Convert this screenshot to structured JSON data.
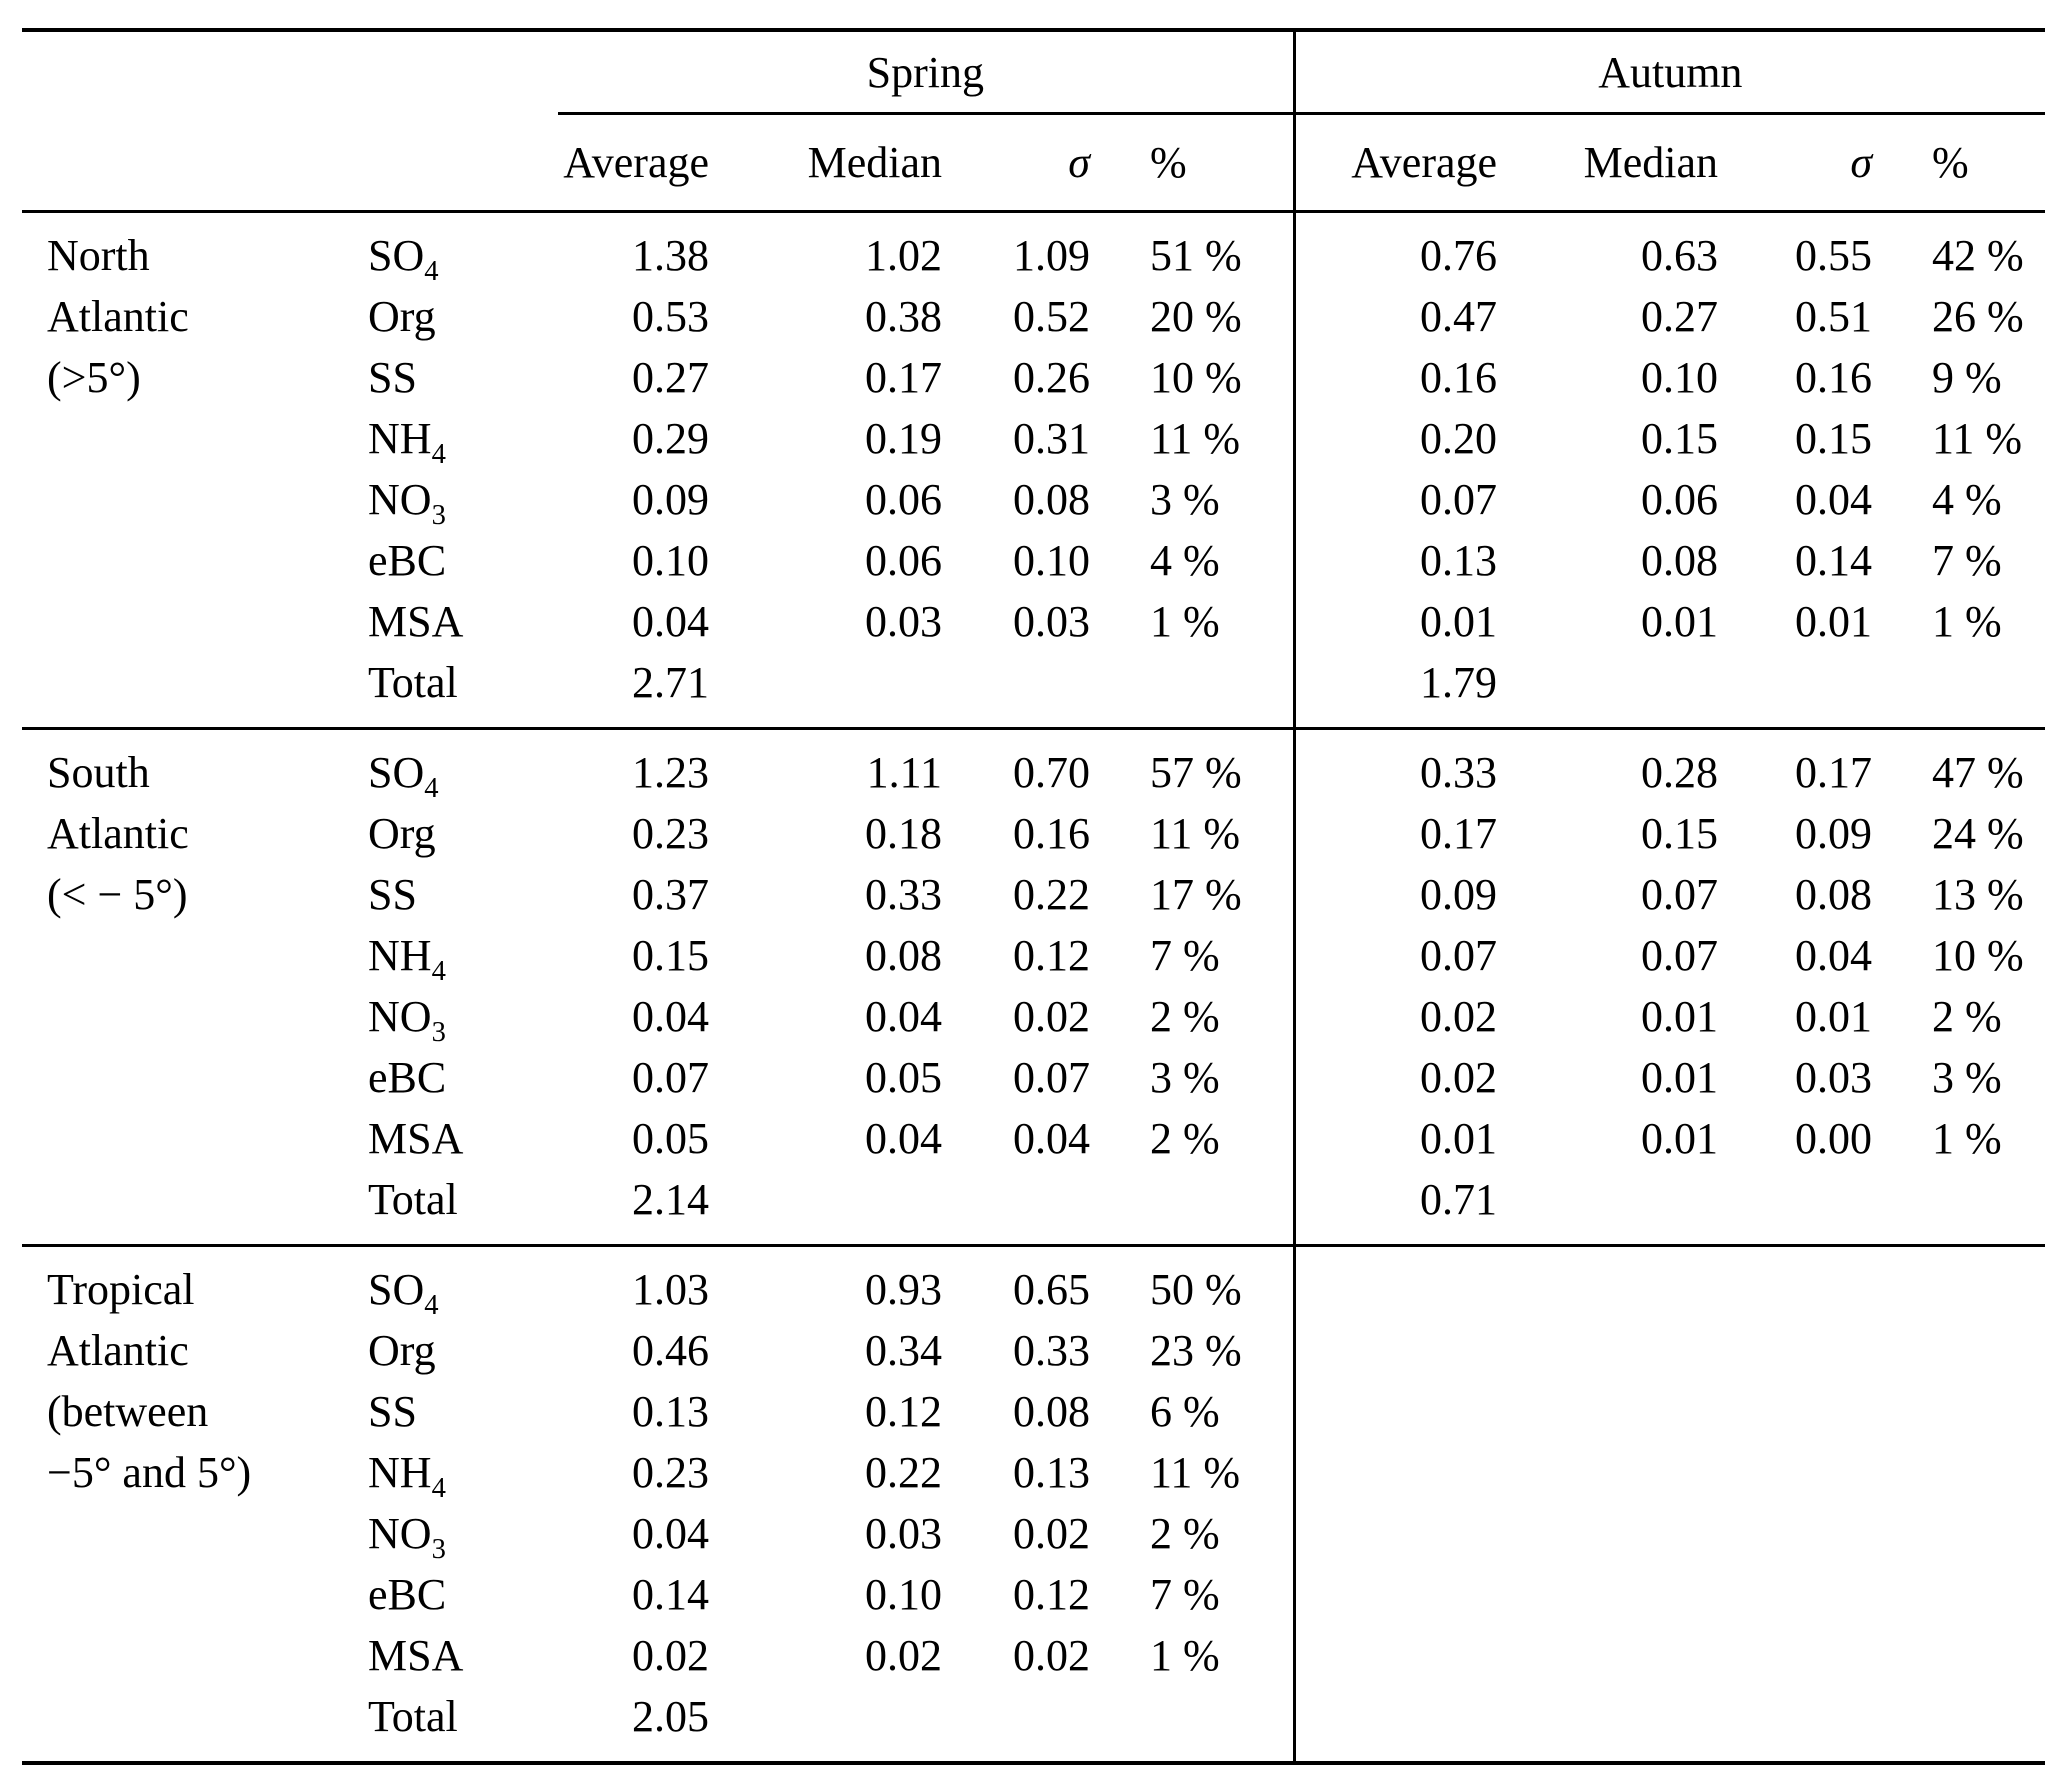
{
  "table": {
    "header": {
      "spring": "Spring",
      "autumn": "Autumn",
      "cols": [
        "Average",
        "Median",
        "σ",
        "%"
      ]
    },
    "sections": [
      {
        "region_lines": [
          "North",
          "Atlantic",
          "(>5°)"
        ],
        "rows": [
          {
            "species": "SO4",
            "spring": [
              "1.38",
              "1.02",
              "1.09",
              "51 %"
            ],
            "autumn": [
              "0.76",
              "0.63",
              "0.55",
              "42 %"
            ]
          },
          {
            "species": "Org",
            "spring": [
              "0.53",
              "0.38",
              "0.52",
              "20 %"
            ],
            "autumn": [
              "0.47",
              "0.27",
              "0.51",
              "26 %"
            ]
          },
          {
            "species": "SS",
            "spring": [
              "0.27",
              "0.17",
              "0.26",
              "10 %"
            ],
            "autumn": [
              "0.16",
              "0.10",
              "0.16",
              "9 %"
            ]
          },
          {
            "species": "NH4",
            "spring": [
              "0.29",
              "0.19",
              "0.31",
              "11 %"
            ],
            "autumn": [
              "0.20",
              "0.15",
              "0.15",
              "11 %"
            ]
          },
          {
            "species": "NO3",
            "spring": [
              "0.09",
              "0.06",
              "0.08",
              "3 %"
            ],
            "autumn": [
              "0.07",
              "0.06",
              "0.04",
              "4 %"
            ]
          },
          {
            "species": "eBC",
            "spring": [
              "0.10",
              "0.06",
              "0.10",
              "4 %"
            ],
            "autumn": [
              "0.13",
              "0.08",
              "0.14",
              "7 %"
            ]
          },
          {
            "species": "MSA",
            "spring": [
              "0.04",
              "0.03",
              "0.03",
              "1 %"
            ],
            "autumn": [
              "0.01",
              "0.01",
              "0.01",
              "1 %"
            ]
          },
          {
            "species": "Total",
            "spring": [
              "2.71",
              "",
              "",
              ""
            ],
            "autumn": [
              "1.79",
              "",
              "",
              ""
            ]
          }
        ]
      },
      {
        "region_lines": [
          "South",
          "Atlantic",
          "(< − 5°)"
        ],
        "rows": [
          {
            "species": "SO4",
            "spring": [
              "1.23",
              "1.11",
              "0.70",
              "57 %"
            ],
            "autumn": [
              "0.33",
              "0.28",
              "0.17",
              "47 %"
            ]
          },
          {
            "species": "Org",
            "spring": [
              "0.23",
              "0.18",
              "0.16",
              "11 %"
            ],
            "autumn": [
              "0.17",
              "0.15",
              "0.09",
              "24 %"
            ]
          },
          {
            "species": "SS",
            "spring": [
              "0.37",
              "0.33",
              "0.22",
              "17 %"
            ],
            "autumn": [
              "0.09",
              "0.07",
              "0.08",
              "13 %"
            ]
          },
          {
            "species": "NH4",
            "spring": [
              "0.15",
              "0.08",
              "0.12",
              "7 %"
            ],
            "autumn": [
              "0.07",
              "0.07",
              "0.04",
              "10 %"
            ]
          },
          {
            "species": "NO3",
            "spring": [
              "0.04",
              "0.04",
              "0.02",
              "2 %"
            ],
            "autumn": [
              "0.02",
              "0.01",
              "0.01",
              "2 %"
            ]
          },
          {
            "species": "eBC",
            "spring": [
              "0.07",
              "0.05",
              "0.07",
              "3 %"
            ],
            "autumn": [
              "0.02",
              "0.01",
              "0.03",
              "3 %"
            ]
          },
          {
            "species": "MSA",
            "spring": [
              "0.05",
              "0.04",
              "0.04",
              "2 %"
            ],
            "autumn": [
              "0.01",
              "0.01",
              "0.00",
              "1 %"
            ]
          },
          {
            "species": "Total",
            "spring": [
              "2.14",
              "",
              "",
              ""
            ],
            "autumn": [
              "0.71",
              "",
              "",
              ""
            ]
          }
        ]
      },
      {
        "region_lines": [
          "Tropical",
          "Atlantic",
          "(between",
          "−5° and 5°)"
        ],
        "rows": [
          {
            "species": "SO4",
            "spring": [
              "1.03",
              "0.93",
              "0.65",
              "50 %"
            ],
            "autumn": [
              "",
              "",
              "",
              ""
            ]
          },
          {
            "species": "Org",
            "spring": [
              "0.46",
              "0.34",
              "0.33",
              "23 %"
            ],
            "autumn": [
              "",
              "",
              "",
              ""
            ]
          },
          {
            "species": "SS",
            "spring": [
              "0.13",
              "0.12",
              "0.08",
              "6 %"
            ],
            "autumn": [
              "",
              "",
              "",
              ""
            ]
          },
          {
            "species": "NH4",
            "spring": [
              "0.23",
              "0.22",
              "0.13",
              "11 %"
            ],
            "autumn": [
              "",
              "",
              "",
              ""
            ]
          },
          {
            "species": "NO3",
            "spring": [
              "0.04",
              "0.03",
              "0.02",
              "2 %"
            ],
            "autumn": [
              "",
              "",
              "",
              ""
            ]
          },
          {
            "species": "eBC",
            "spring": [
              "0.14",
              "0.10",
              "0.12",
              "7 %"
            ],
            "autumn": [
              "",
              "",
              "",
              ""
            ]
          },
          {
            "species": "MSA",
            "spring": [
              "0.02",
              "0.02",
              "0.02",
              "1 %"
            ],
            "autumn": [
              "",
              "",
              "",
              ""
            ]
          },
          {
            "species": "Total",
            "spring": [
              "2.05",
              "",
              "",
              ""
            ],
            "autumn": [
              "",
              "",
              "",
              ""
            ]
          }
        ]
      }
    ]
  }
}
